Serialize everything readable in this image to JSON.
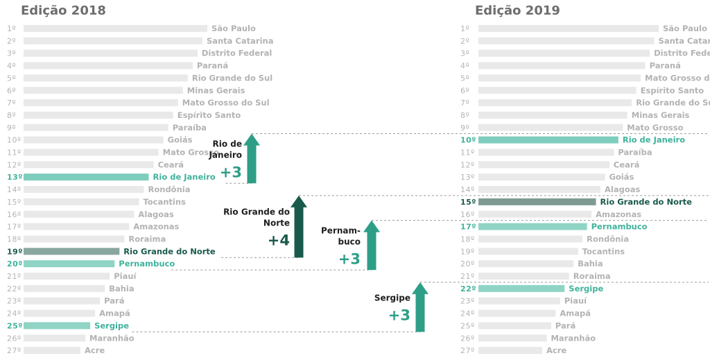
{
  "chart_data": [
    {
      "type": "bar",
      "title": "Edição 2018",
      "categories": [
        "São Paulo",
        "Santa Catarina",
        "Distrito Federal",
        "Paraná",
        "Rio Grande do Sul",
        "Minas Gerais",
        "Mato Grosso do Sul",
        "Espírito Santo",
        "Paraíba",
        "Goiás",
        "Mato Grosso",
        "Ceará",
        "Rio de Janeiro",
        "Rondônia",
        "Tocantins",
        "Alagoas",
        "Amazonas",
        "Roraima",
        "Rio Grande do Norte",
        "Pernambuco",
        "Piauí",
        "Bahia",
        "Pará",
        "Amapá",
        "Sergipe",
        "Maranhão",
        "Acre"
      ],
      "ranks": [
        "1º",
        "2º",
        "3º",
        "4º",
        "5º",
        "6º",
        "7º",
        "8º",
        "9º",
        "10º",
        "11º",
        "12º",
        "13º",
        "14º",
        "15º",
        "16º",
        "17º",
        "18º",
        "19º",
        "20º",
        "21º",
        "22º",
        "23º",
        "24º",
        "25º",
        "26º",
        "27º"
      ],
      "highlights": {
        "Rio de Janeiro": "#7ecdbd",
        "Rio Grande do Norte": "#8aa79f",
        "Pernambuco": "#8fd4c5",
        "Sergipe": "#8fd4c5"
      }
    },
    {
      "type": "bar",
      "title": "Edição 2019",
      "categories": [
        "São Paulo",
        "Santa Catarina",
        "Distrito Federal",
        "Paraná",
        "Mato Grosso do Sul",
        "Espírito Santo",
        "Rio Grande do Sul",
        "Minas Gerais",
        "Mato Grosso",
        "Rio de Janeiro",
        "Paraíba",
        "Ceará",
        "Goiás",
        "Alagoas",
        "Rio Grande do Norte",
        "Amazonas",
        "Pernambuco",
        "Rondônia",
        "Tocantins",
        "Bahia",
        "Roraima",
        "Sergipe",
        "Piauí",
        "Amapá",
        "Pará",
        "Maranhão",
        "Acre"
      ],
      "ranks": [
        "1º",
        "2º",
        "3º",
        "4º",
        "5º",
        "6º",
        "7º",
        "8º",
        "9º",
        "10º",
        "11º",
        "12º",
        "13º",
        "14º",
        "15º",
        "16º",
        "17º",
        "18º",
        "19º",
        "20º",
        "21º",
        "22º",
        "23º",
        "24º",
        "25º",
        "26º",
        "27º"
      ],
      "highlights": {
        "Rio de Janeiro": "#7ecdbd",
        "Rio Grande do Norte": "#7f9a92",
        "Pernambuco": "#8fd4c5",
        "Sergipe": "#8fd4c5"
      }
    }
  ],
  "annotations": [
    {
      "name": "Rio de Janeiro",
      "lines": [
        "Rio de",
        "Janeiro"
      ],
      "change": "+3",
      "from": 13,
      "to": 10,
      "color": "#2e9e87",
      "label_color": "#1e1e1e"
    },
    {
      "name": "Rio Grande do Norte",
      "lines": [
        "Rio Grande do",
        "Norte"
      ],
      "change": "+4",
      "from": 19,
      "to": 15,
      "color": "#1a5a4c",
      "label_color": "#1e1e1e"
    },
    {
      "name": "Pernambuco",
      "lines": [
        "Pernam-",
        "buco"
      ],
      "change": "+3",
      "from": 20,
      "to": 17,
      "color": "#2e9e87",
      "label_color": "#1e1e1e"
    },
    {
      "name": "Sergipe",
      "lines": [
        "Sergipe"
      ],
      "change": "+3",
      "from": 25,
      "to": 22,
      "color": "#2e9e87",
      "label_color": "#1e1e1e"
    }
  ],
  "colors": {
    "bar": "#e9e9e9",
    "text_muted": "#b3b3b3",
    "title": "#6d6d6d",
    "teal_text": "#3fb39c",
    "dark_text": "#1a5a4c"
  }
}
